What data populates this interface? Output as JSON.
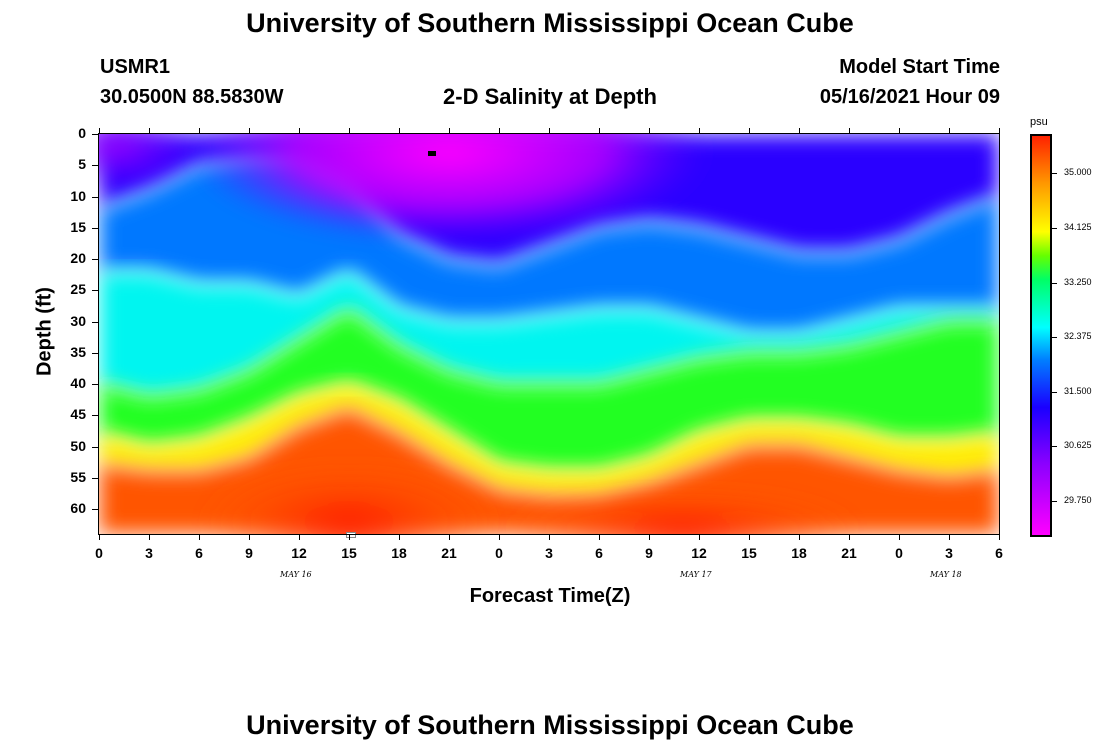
{
  "header": {
    "title_top": "University of Southern Mississippi Ocean Cube",
    "station": "USMR1",
    "location": "30.0500N  88.5830W",
    "chart_title": "2-D Salinity at Depth",
    "model_label": "Model Start Time",
    "model_time": "05/16/2021 Hour 09",
    "title_bottom": "University of Southern Mississippi Ocean Cube"
  },
  "chart_data": {
    "type": "heatmap",
    "title": "2-D Salinity at Depth",
    "xlabel": "Forecast Time(Z)",
    "ylabel": "Depth (ft)",
    "x_ticks": [
      "0",
      "3",
      "6",
      "9",
      "12",
      "15",
      "18",
      "21",
      "0",
      "3",
      "6",
      "9",
      "12",
      "15",
      "18",
      "21",
      "0",
      "3",
      "6"
    ],
    "y_ticks": [
      "0",
      "5",
      "10",
      "15",
      "20",
      "25",
      "30",
      "35",
      "40",
      "45",
      "50",
      "55",
      "60"
    ],
    "ylim": [
      0,
      64
    ],
    "date_labels": [
      "MAY 16",
      "MAY 17",
      "MAY 18"
    ],
    "colorbar": {
      "unit": "psu",
      "ticks": [
        "35.000",
        "34.125",
        "33.250",
        "32.375",
        "31.500",
        "30.625",
        "29.750"
      ]
    },
    "salinity_isolines_depth_ft": {
      "hours": [
        0,
        3,
        6,
        9,
        12,
        15,
        18,
        21,
        24,
        27,
        30,
        33,
        36,
        39,
        42,
        45,
        48,
        51,
        54
      ],
      "psu_30_6": [
        12,
        9,
        5,
        4,
        4,
        8,
        16,
        20,
        21,
        18,
        15,
        14,
        15,
        17,
        19,
        19,
        17,
        13,
        10
      ],
      "psu_31_5": [
        22,
        22,
        24,
        24,
        26,
        22,
        28,
        30,
        30,
        29,
        28,
        28,
        30,
        32,
        32,
        30,
        28,
        28,
        28
      ],
      "psu_32_4": [
        40,
        42,
        41,
        38,
        33,
        28,
        34,
        38,
        40,
        40,
        40,
        38,
        36,
        35,
        35,
        34,
        32,
        30,
        30
      ],
      "psu_33_2": [
        48,
        50,
        49,
        46,
        42,
        40,
        43,
        48,
        53,
        54,
        54,
        52,
        48,
        46,
        46,
        47,
        49,
        49,
        48
      ],
      "psu_34_1": [
        53,
        54,
        54,
        52,
        47,
        44,
        48,
        53,
        57,
        58,
        58,
        56,
        53,
        50,
        50,
        52,
        54,
        55,
        54
      ]
    }
  }
}
